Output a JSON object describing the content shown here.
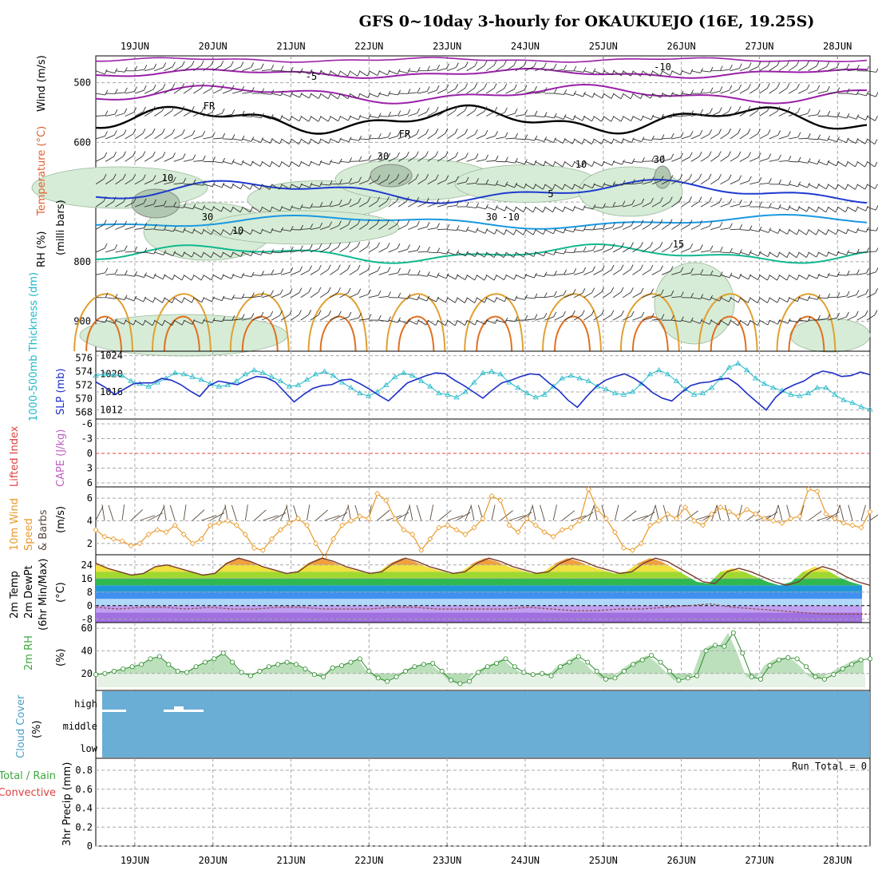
{
  "title": "GFS 0~10day 3-hourly for OKAUKUEJO (16E, 19.25S)",
  "x_axis": {
    "date_labels": [
      "19JUN",
      "20JUN",
      "21JUN",
      "22JUN",
      "23JUN",
      "24JUN",
      "25JUN",
      "26JUN",
      "27JUN",
      "28JUN"
    ],
    "start_hour": 12,
    "end_hour": 250,
    "step_hours": 3
  },
  "colors": {
    "grid": "#a8a8a8",
    "rh_fill": "#d6ecd6",
    "rh_dark": "#b0c8b0",
    "slp_line": "#1e2fc8",
    "thickness_line": "#20b8c8",
    "wind_line": "#e89a2a",
    "barb": "#5a4a3a",
    "temp_line": "#7a3a2a",
    "dewpt_line": "#8a4a4a",
    "rh2m_fill": "#3da83d",
    "cloud_fill": "#6aaed6",
    "cape_zero": "#e04040"
  },
  "panels": {
    "upper_air": {
      "ylabel_parts": [
        "RH (%)",
        "Temperature (°C)",
        "Wind (m/s)"
      ],
      "ylabel_units": "(milli bars)",
      "yticks": [
        500,
        600,
        700,
        800,
        900
      ],
      "contour_labels": [
        "-10",
        "-5",
        "FR",
        "FR",
        "5",
        "-10",
        "10",
        "15",
        "10",
        "30",
        "30",
        "30",
        "10",
        "30"
      ]
    },
    "slp": {
      "ylabel_left": "1000-500mb Thickness (dm)",
      "ylabel_right": "SLP (mb)",
      "yticks_left": [
        568,
        570,
        572,
        574,
        576
      ],
      "yticks_right": [
        1012,
        1016,
        1020,
        1024
      ]
    },
    "stability": {
      "ylabel_left": "Lifted Index",
      "ylabel_right": "CAPE (J/kg)",
      "yticks": [
        "-6",
        "-3",
        "0",
        "3",
        "6"
      ]
    },
    "wind10m": {
      "ylabel_lines": [
        "10m Wind",
        "Speed",
        "& Barbs"
      ],
      "units": "(m/s)",
      "yticks": [
        2,
        4,
        6
      ]
    },
    "temp2m": {
      "ylabel_lines": [
        "2m Temp",
        "2m DewPt",
        "(6hr Min/Max)"
      ],
      "units": "(°C)",
      "yticks": [
        -8,
        0,
        8,
        16,
        24
      ]
    },
    "rh2m": {
      "ylabel": "2m RH",
      "units": "(%)",
      "yticks": [
        20,
        40,
        60
      ]
    },
    "cloud": {
      "ylabel": "Cloud Cover",
      "units": "(%)",
      "levels": [
        "high",
        "middle",
        "low"
      ]
    },
    "precip": {
      "ylabel_lines": [
        "Total / Rain",
        "Convective"
      ],
      "ylabel_right": "3hr Precip (mm)",
      "yticks": [
        "0",
        "0.2",
        "0.4",
        "0.6",
        "0.8"
      ],
      "run_total": "Run Total = 0"
    }
  },
  "chart_data": [
    {
      "type": "line",
      "name": "slp",
      "series": [
        {
          "name": "SLP",
          "unit": "mb",
          "values": [
            1018.2,
            1017.0,
            1015.4,
            1016.6,
            1017.8,
            1018.0,
            1018.0,
            1019.0,
            1018.6,
            1017.6,
            1016.2,
            1015.0,
            1017.4,
            1018.4,
            1018.0,
            1017.6,
            1018.6,
            1019.4,
            1019.2,
            1018.2,
            1016.0,
            1013.8,
            1015.4,
            1016.8,
            1017.4,
            1017.6,
            1018.6,
            1018.8,
            1017.8,
            1016.6,
            1015.2,
            1014.0,
            1016.0,
            1018.0,
            1018.8,
            1019.6,
            1020.2,
            1020.0,
            1018.6,
            1017.4,
            1016.0,
            1014.6,
            1016.4,
            1018.0,
            1018.6,
            1019.4,
            1020.0,
            1019.8,
            1018.0,
            1016.4,
            1014.2,
            1012.6,
            1015.0,
            1017.2,
            1018.6,
            1019.4,
            1020.0,
            1019.0,
            1017.6,
            1015.8,
            1014.6,
            1014.0,
            1015.8,
            1017.4,
            1018.0,
            1018.2,
            1018.8,
            1019.0,
            1017.6,
            1015.6,
            1013.8,
            1012.0,
            1014.8,
            1016.6,
            1017.6,
            1018.4,
            1019.8,
            1020.6,
            1020.2,
            1019.4,
            1019.6,
            1020.4,
            1019.8
          ]
        },
        {
          "name": "Thickness",
          "unit": "dm",
          "values": [
            573.4,
            573.6,
            573.5,
            573.4,
            572.6,
            572.2,
            571.8,
            572.4,
            573.0,
            573.8,
            573.6,
            573.2,
            572.8,
            572.2,
            571.8,
            572.0,
            572.6,
            573.6,
            574.2,
            573.8,
            573.2,
            572.6,
            571.8,
            572.0,
            572.8,
            573.6,
            574.0,
            573.4,
            572.4,
            571.6,
            570.8,
            570.4,
            571.0,
            572.0,
            573.2,
            573.8,
            573.4,
            572.6,
            571.8,
            570.8,
            570.6,
            570.2,
            571.0,
            572.4,
            573.8,
            574.0,
            573.6,
            572.4,
            571.6,
            570.8,
            570.2,
            570.6,
            571.8,
            573.0,
            573.4,
            573.0,
            572.6,
            571.8,
            571.4,
            570.8,
            570.6,
            571.0,
            572.2,
            573.6,
            574.2,
            573.6,
            572.6,
            571.4,
            570.6,
            570.8,
            571.6,
            573.0,
            574.6,
            575.2,
            574.2,
            573.0,
            572.2,
            571.6,
            571.2,
            570.6,
            570.4,
            570.8,
            571.6,
            571.6,
            570.6,
            569.8,
            569.4,
            568.8,
            568.4
          ]
        }
      ],
      "ylim_left": [
        567,
        577
      ],
      "ylim_right": [
        1010,
        1025
      ]
    },
    {
      "type": "line",
      "name": "wind10m",
      "series": [
        {
          "name": "10m Wind Speed",
          "unit": "m/s",
          "values": [
            3.2,
            2.6,
            2.4,
            2.2,
            1.8,
            2.0,
            2.8,
            3.2,
            3.0,
            3.6,
            2.8,
            2.0,
            2.4,
            3.6,
            3.8,
            4.0,
            3.6,
            2.8,
            1.6,
            1.4,
            2.4,
            3.2,
            3.8,
            4.2,
            3.6,
            2.0,
            0.8,
            2.4,
            3.6,
            4.0,
            4.4,
            4.2,
            6.4,
            5.8,
            4.2,
            3.2,
            2.8,
            1.4,
            2.4,
            3.4,
            3.6,
            3.2,
            2.8,
            3.4,
            4.2,
            6.2,
            5.8,
            3.6,
            3.0,
            4.2,
            3.6,
            3.0,
            2.6,
            3.2,
            3.4,
            4.0,
            6.8,
            5.0,
            4.2,
            3.0,
            1.6,
            1.4,
            2.0,
            3.6,
            4.0,
            4.6,
            4.2,
            5.2,
            4.0,
            3.6,
            4.6,
            5.2,
            4.8,
            4.4,
            5.0,
            4.6,
            4.2,
            4.0,
            3.8,
            4.2,
            4.4,
            6.8,
            6.6,
            4.6,
            4.2,
            3.8,
            3.6,
            3.4,
            4.8
          ]
        }
      ],
      "ylim": [
        1,
        7
      ]
    },
    {
      "type": "area",
      "name": "temp2m",
      "series": [
        {
          "name": "2m Temp",
          "unit": "°C",
          "values": [
            25,
            22,
            20,
            18,
            19,
            23,
            24,
            22,
            20,
            18,
            19,
            25,
            28,
            26,
            23,
            21,
            19,
            20,
            25,
            28,
            26,
            23,
            21,
            19,
            20,
            25,
            28,
            26,
            23,
            21,
            19,
            20,
            25,
            28,
            26,
            23,
            21,
            19,
            20,
            25,
            28,
            26,
            23,
            21,
            19,
            20,
            25,
            28,
            26,
            22,
            18,
            14,
            13,
            20,
            22,
            20,
            17,
            14,
            12,
            14,
            20,
            23,
            21,
            17,
            14,
            12
          ]
        },
        {
          "name": "2m DewPt",
          "unit": "°C",
          "values": [
            -1,
            -2,
            -1,
            -1,
            -2,
            -1,
            -2,
            -2,
            -1,
            -1,
            -2,
            -2,
            -2,
            -1,
            -1,
            -2,
            -2,
            -2,
            -2,
            -1,
            -2,
            -3,
            -3,
            -2,
            -2,
            -1,
            0,
            1,
            -1,
            -2,
            -3,
            -4,
            -5,
            -5,
            -5
          ]
        }
      ],
      "ylim": [
        -10,
        30
      ]
    },
    {
      "type": "area",
      "name": "rh2m",
      "series": [
        {
          "name": "2m RH",
          "unit": "%",
          "values": [
            19,
            20,
            22,
            24,
            26,
            28,
            33,
            35,
            28,
            22,
            21,
            26,
            30,
            33,
            38,
            30,
            21,
            18,
            22,
            26,
            28,
            30,
            28,
            24,
            19,
            17,
            25,
            27,
            30,
            33,
            22,
            16,
            13,
            17,
            22,
            26,
            28,
            29,
            22,
            14,
            11,
            13,
            21,
            26,
            29,
            33,
            26,
            21,
            19,
            20,
            18,
            26,
            30,
            35,
            30,
            22,
            15,
            16,
            22,
            28,
            32,
            36,
            30,
            22,
            14,
            16,
            18,
            40,
            45,
            44,
            56,
            38,
            17,
            15,
            27,
            32,
            34,
            33,
            26,
            17,
            15,
            19,
            24,
            28,
            32,
            33
          ]
        }
      ],
      "ylim": [
        5,
        65
      ]
    },
    {
      "type": "area",
      "name": "cloud_cover",
      "series": [
        {
          "name": "high",
          "values": [
            0,
            0,
            0,
            0,
            0,
            0,
            0,
            0,
            0,
            0
          ]
        },
        {
          "name": "middle",
          "values": [
            0,
            0,
            0,
            0,
            0,
            0,
            0,
            0,
            0,
            0
          ]
        },
        {
          "name": "low",
          "values": [
            0,
            0,
            0,
            0,
            0,
            0,
            0,
            0,
            0,
            0
          ]
        }
      ]
    },
    {
      "type": "bar",
      "name": "precip",
      "series": [
        {
          "name": "3hr Precip",
          "unit": "mm",
          "values": []
        }
      ],
      "ylim": [
        0,
        0.9
      ]
    }
  ]
}
